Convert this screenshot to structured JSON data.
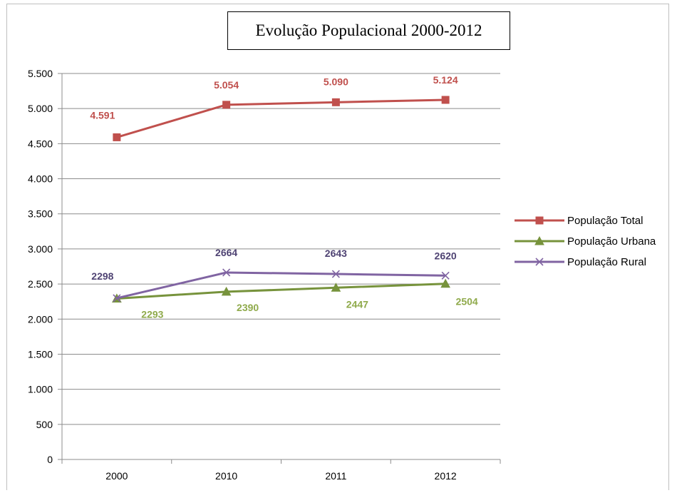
{
  "chart_data": {
    "type": "line",
    "title": "Evolução Populacional 2000-2012",
    "categories": [
      "2000",
      "2010",
      "2011",
      "2012"
    ],
    "ylim": [
      0,
      5500
    ],
    "yticks": [
      0,
      500,
      1000,
      1500,
      2000,
      2500,
      3000,
      3500,
      4000,
      4500,
      5000,
      5500
    ],
    "ytick_labels": [
      "0",
      "500",
      "1.000",
      "1.500",
      "2.000",
      "2.500",
      "3.000",
      "3.500",
      "4.000",
      "4.500",
      "5.000",
      "5.500"
    ],
    "grid": true,
    "legend_position": "right",
    "series": [
      {
        "name": "População Total",
        "values": [
          4591,
          5054,
          5090,
          5124
        ],
        "labels": [
          "4.591",
          "5.054",
          "5.090",
          "5.124"
        ],
        "color": "#c0504d",
        "marker": "square",
        "label_position": "above"
      },
      {
        "name": "População Urbana",
        "values": [
          2293,
          2390,
          2447,
          2504
        ],
        "labels": [
          "2293",
          "2390",
          "2447",
          "2504"
        ],
        "color": "#77933c",
        "label_color": "#8faa4b",
        "marker": "triangle",
        "label_position": "below"
      },
      {
        "name": "População Rural",
        "values": [
          2298,
          2664,
          2643,
          2620
        ],
        "labels": [
          "2298",
          "2664",
          "2643",
          "2620"
        ],
        "color": "#8064a2",
        "label_color": "#4f4373",
        "marker": "x",
        "label_position": "above"
      }
    ]
  }
}
